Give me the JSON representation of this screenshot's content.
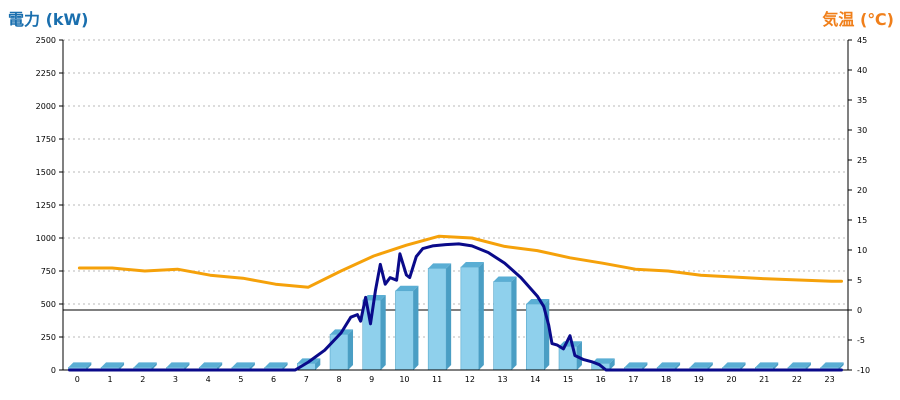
{
  "chart_data": {
    "type": "bar",
    "y_left_title": "電力 (kW)",
    "y_right_title": "気温 (℃)",
    "categories": [
      "0",
      "1",
      "2",
      "3",
      "4",
      "5",
      "6",
      "7",
      "8",
      "9",
      "10",
      "11",
      "12",
      "13",
      "14",
      "15",
      "16",
      "17",
      "18",
      "19",
      "20",
      "21",
      "22",
      "23"
    ],
    "y_left_ticks": [
      "0",
      "250",
      "500",
      "750",
      "1000",
      "1250",
      "1500",
      "1750",
      "2000",
      "2250",
      "2500"
    ],
    "y_right_ticks": [
      "-10",
      "-5",
      "0",
      "5",
      "10",
      "15",
      "20",
      "25",
      "30",
      "35",
      "40",
      "45"
    ],
    "y_left_range": [
      0,
      2500
    ],
    "y_right_range": [
      -10,
      45
    ],
    "grid": "horizontal-dotted",
    "colors": {
      "bar": "#8fd0ec",
      "bar_side": "#4a9ec4",
      "bar_top": "#5aaed4",
      "power_line": "#0a0a8a",
      "temp_line": "#f5a10a",
      "left_title": "#1a6fae",
      "right_title": "#f07f1a"
    },
    "series": [
      {
        "axis": "left",
        "kind": "bar",
        "values": [
          0,
          0,
          0,
          0,
          0,
          0,
          0,
          50,
          270,
          530,
          600,
          770,
          780,
          670,
          500,
          180,
          50,
          0,
          0,
          0,
          0,
          0,
          0,
          0
        ]
      },
      {
        "axis": "left",
        "kind": "line",
        "points": [
          [
            -0.3,
            0
          ],
          [
            6.6,
            0
          ],
          [
            7.0,
            60
          ],
          [
            7.5,
            150
          ],
          [
            8.0,
            280
          ],
          [
            8.3,
            400
          ],
          [
            8.5,
            420
          ],
          [
            8.6,
            370
          ],
          [
            8.75,
            550
          ],
          [
            8.9,
            350
          ],
          [
            9.05,
            600
          ],
          [
            9.2,
            800
          ],
          [
            9.35,
            650
          ],
          [
            9.5,
            700
          ],
          [
            9.7,
            680
          ],
          [
            9.8,
            880
          ],
          [
            10.0,
            720
          ],
          [
            10.1,
            700
          ],
          [
            10.3,
            860
          ],
          [
            10.5,
            920
          ],
          [
            10.8,
            940
          ],
          [
            11.2,
            950
          ],
          [
            11.6,
            955
          ],
          [
            12.0,
            940
          ],
          [
            12.5,
            890
          ],
          [
            13.0,
            810
          ],
          [
            13.5,
            700
          ],
          [
            14.0,
            560
          ],
          [
            14.2,
            480
          ],
          [
            14.35,
            340
          ],
          [
            14.45,
            200
          ],
          [
            14.6,
            190
          ],
          [
            14.8,
            160
          ],
          [
            15.0,
            260
          ],
          [
            15.15,
            110
          ],
          [
            15.4,
            80
          ],
          [
            15.7,
            60
          ],
          [
            15.9,
            40
          ],
          [
            16.1,
            0
          ],
          [
            23.3,
            0
          ]
        ]
      },
      {
        "axis": "right",
        "kind": "line",
        "points": [
          [
            0,
            7
          ],
          [
            1,
            7
          ],
          [
            2,
            6.5
          ],
          [
            3,
            6.8
          ],
          [
            4,
            5.8
          ],
          [
            5,
            5.3
          ],
          [
            6,
            4.3
          ],
          [
            7,
            3.8
          ],
          [
            8,
            6.5
          ],
          [
            9,
            9
          ],
          [
            10,
            10.8
          ],
          [
            11,
            12.3
          ],
          [
            12,
            12
          ],
          [
            13,
            10.6
          ],
          [
            14,
            9.9
          ],
          [
            15,
            8.7
          ],
          [
            16,
            7.8
          ],
          [
            17,
            6.8
          ],
          [
            18,
            6.5
          ],
          [
            19,
            5.8
          ],
          [
            20,
            5.5
          ],
          [
            21,
            5.2
          ],
          [
            22,
            5
          ],
          [
            23,
            4.8
          ],
          [
            23.3,
            4.8
          ]
        ]
      }
    ]
  }
}
